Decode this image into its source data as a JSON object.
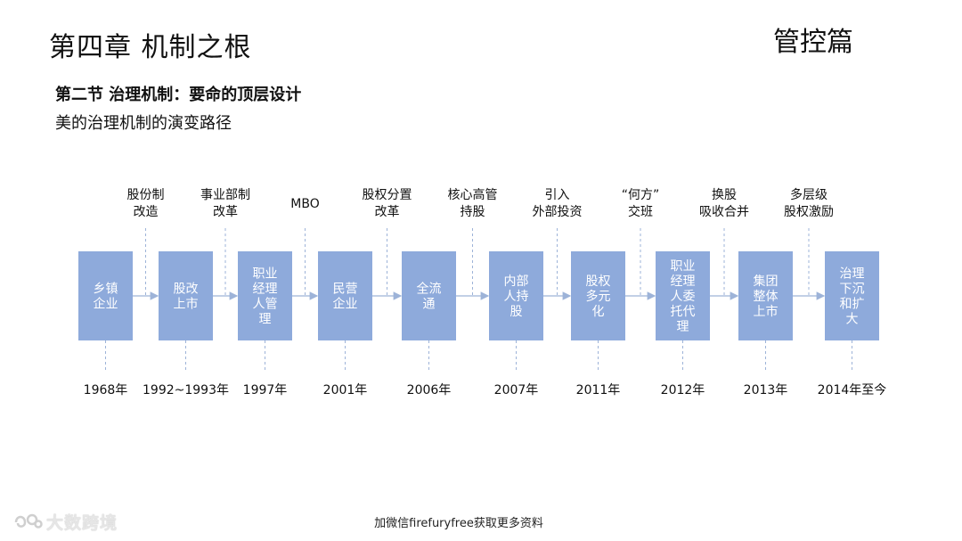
{
  "header": {
    "chapter_title": "第四章 机制之根",
    "part_title": "管控篇",
    "section_title": "第二节  治理机制：要命的顶层设计",
    "subtitle": "美的治理机制的演变路径"
  },
  "timeline": {
    "box_color": "#8eaadb",
    "line_color": "#9db3d8",
    "stages": [
      {
        "label": [
          "乡镇",
          "企业"
        ],
        "year": "1968年",
        "event": [
          "股份制",
          "改造"
        ]
      },
      {
        "label": [
          "股改",
          "上市"
        ],
        "year": "1992~1993年",
        "event": [
          "事业部制",
          "改革"
        ]
      },
      {
        "label": [
          "职业",
          "经理",
          "人管",
          "理"
        ],
        "year": "1997年",
        "event": [
          "MBO"
        ]
      },
      {
        "label": [
          "民营",
          "企业"
        ],
        "year": "2001年",
        "event": [
          "股权分置",
          "改革"
        ]
      },
      {
        "label": [
          "全流",
          "通"
        ],
        "year": "2006年",
        "event": [
          "核心高管",
          "持股"
        ]
      },
      {
        "label": [
          "内部",
          "人持",
          "股"
        ],
        "year": "2007年",
        "event": [
          "引入",
          "外部投资"
        ]
      },
      {
        "label": [
          "股权",
          "多元",
          "化"
        ],
        "year": "2011年",
        "event": [
          "“何方”",
          "交班"
        ]
      },
      {
        "label": [
          "职业",
          "经理",
          "人委",
          "托代",
          "理"
        ],
        "year": "2012年",
        "event": [
          "换股",
          "吸收合并"
        ]
      },
      {
        "label": [
          "集团",
          "整体",
          "上市"
        ],
        "year": "2013年",
        "event": [
          "多层级",
          "股权激励"
        ]
      },
      {
        "label": [
          "治理",
          "下沉",
          "和扩",
          "大"
        ],
        "year": "2014年至今"
      }
    ]
  },
  "footer": {
    "note": "加微信firefuryfree获取更多资料",
    "watermark": "大数跨境"
  }
}
